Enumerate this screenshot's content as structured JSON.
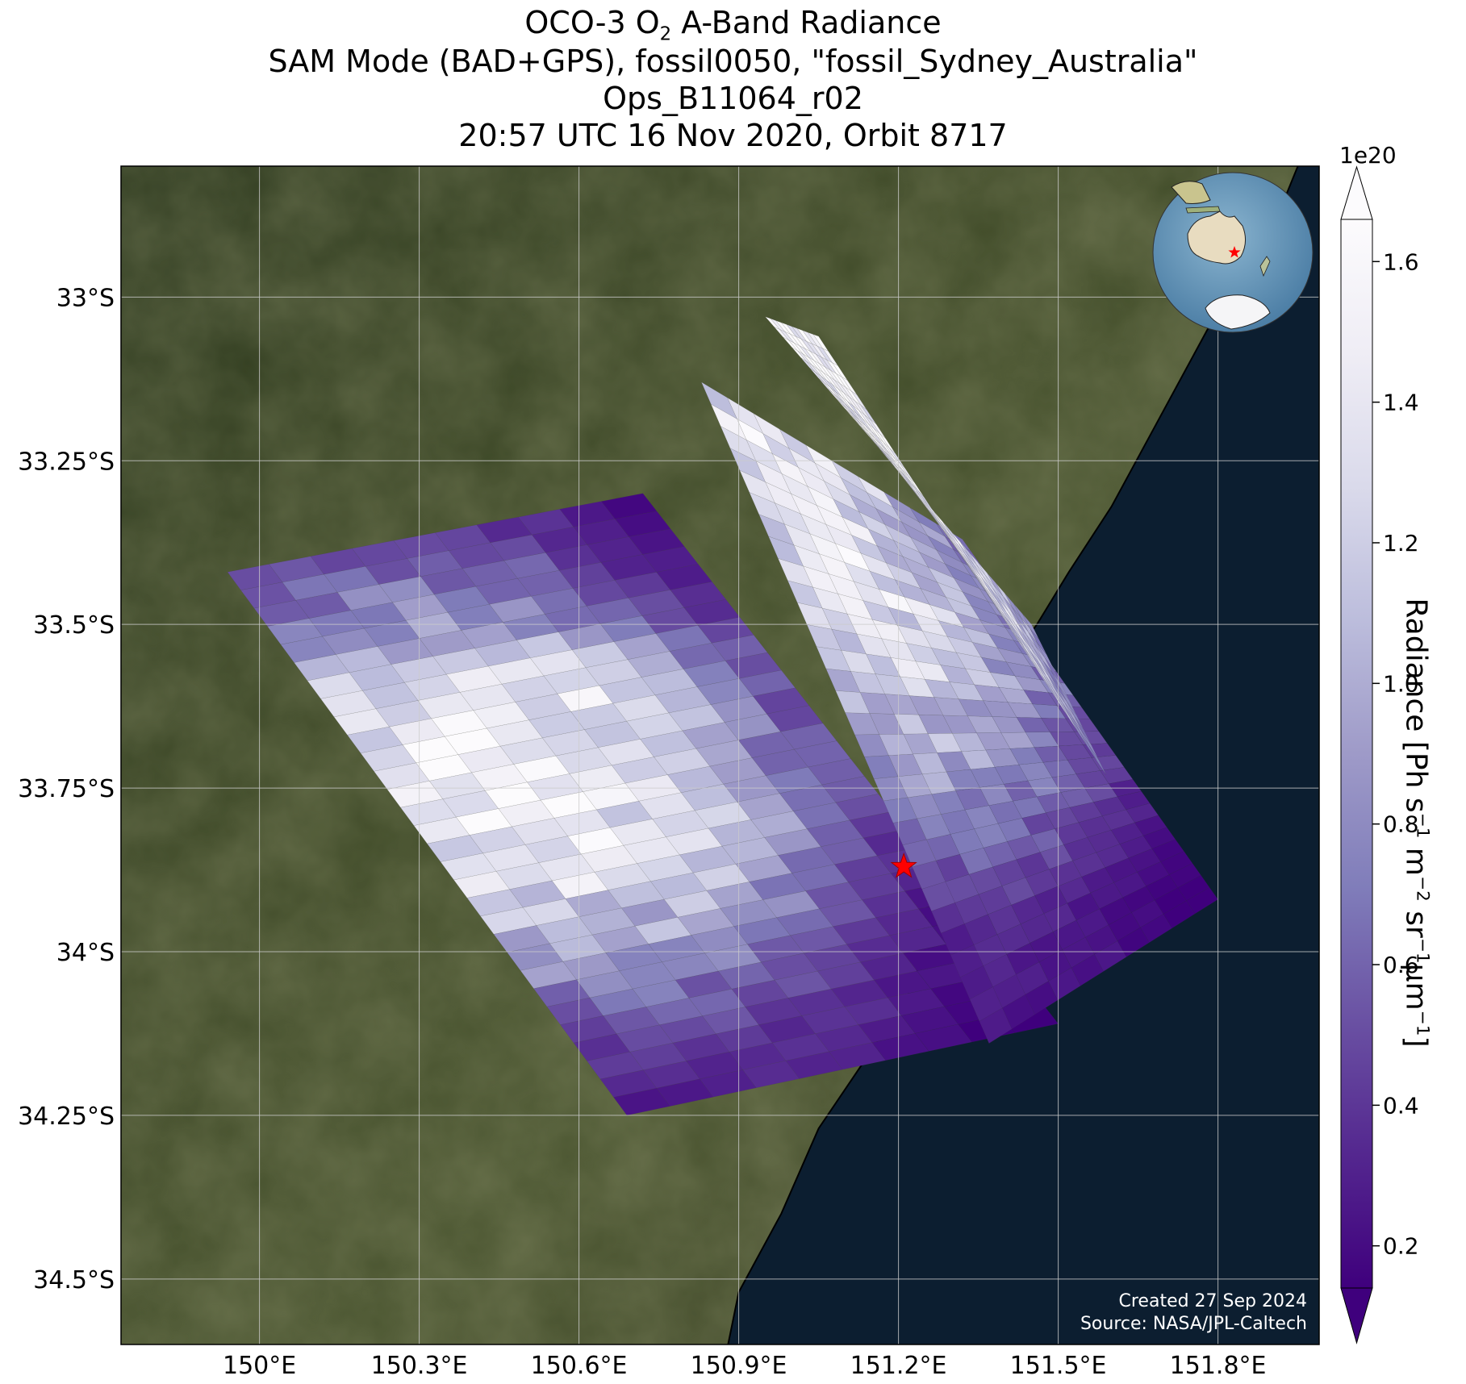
{
  "title": {
    "line1_prefix": "OCO-3 O",
    "line1_sub": "2",
    "line1_suffix": " A-Band Radiance",
    "line2": "SAM Mode (BAD+GPS), fossil0050, \"fossil_Sydney_Australia\"",
    "line3": "Ops_B11064_r02",
    "line4": "20:57 UTC 16 Nov 2020, Orbit 8717"
  },
  "axes": {
    "lon_ticks": [
      "150°E",
      "150.3°E",
      "150.6°E",
      "150.9°E",
      "151.2°E",
      "151.5°E",
      "151.8°E"
    ],
    "lon_values": [
      150.0,
      150.3,
      150.6,
      150.9,
      151.2,
      151.5,
      151.8
    ],
    "lat_ticks": [
      "33°S",
      "33.25°S",
      "33.5°S",
      "33.75°S",
      "34°S",
      "34.25°S",
      "34.5°S"
    ],
    "lat_values": [
      -33.0,
      -33.25,
      -33.5,
      -33.75,
      -34.0,
      -34.25,
      -34.5
    ],
    "lon_range": [
      149.74,
      151.99
    ],
    "lat_range": [
      -34.6,
      -32.8
    ],
    "grid": true
  },
  "colorbar": {
    "scale_label": "1e20",
    "ticks": [
      "0.2",
      "0.4",
      "0.6",
      "0.8",
      "1.0",
      "1.2",
      "1.4",
      "1.6"
    ],
    "tick_values": [
      0.2,
      0.4,
      0.6,
      0.8,
      1.0,
      1.2,
      1.4,
      1.6
    ],
    "range": [
      0.14,
      1.66
    ],
    "colormap": [
      "#3f007d",
      "#54278f",
      "#6a51a3",
      "#807dba",
      "#9e9ac8",
      "#bcbddc",
      "#dadaeb",
      "#efedf5",
      "#fcfbfd"
    ],
    "extend": "both"
  },
  "target": {
    "name": "fossil_Sydney_Australia",
    "lon": 151.21,
    "lat": -33.87,
    "marker_color": "#ff0000"
  },
  "inset_globe": {
    "marker_color": "#ff0000"
  },
  "credit": {
    "line1": "Created 27 Sep 2024",
    "line2": "Source: NASA/JPL-Caltech"
  },
  "colors": {
    "ocean": "#0c1e30",
    "land": "#3c4426",
    "grid": "#cccccc"
  },
  "chart_data": {
    "type": "heatmap",
    "title": "OCO-3 O2 A-Band Radiance",
    "xlabel": "",
    "ylabel": "",
    "xlim": [
      149.74,
      151.99
    ],
    "ylim": [
      -34.6,
      -32.8
    ],
    "value_unit": "Radiance [Ph s^-1 m^-2 sr^-1 μm^-1]",
    "value_scale": 1e+20,
    "swaths": [
      {
        "corners_lonlat": [
          [
            149.94,
            -33.42
          ],
          [
            150.72,
            -33.3
          ],
          [
            151.5,
            -34.11
          ],
          [
            150.69,
            -34.25
          ]
        ],
        "along_track_values": [
          0.45,
          0.75,
          1.35,
          1.5,
          1.25,
          0.9,
          0.45,
          0.25
        ],
        "cross_track_profile": [
          1.0,
          1.1,
          1.15,
          1.05,
          0.95,
          0.75,
          0.5,
          0.3
        ]
      },
      {
        "corners_lonlat": [
          [
            150.83,
            -33.13
          ],
          [
            151.32,
            -33.37
          ],
          [
            151.8,
            -33.92
          ],
          [
            151.37,
            -34.14
          ]
        ],
        "along_track_values": [
          1.35,
          1.25,
          1.3,
          1.15,
          0.9,
          0.6,
          0.3,
          0.22
        ],
        "cross_track_profile": [
          1.0,
          1.05,
          1.1,
          1.05,
          0.95,
          0.8,
          0.65,
          0.5
        ]
      },
      {
        "corners_lonlat": [
          [
            150.95,
            -33.03
          ],
          [
            151.05,
            -33.06
          ],
          [
            151.59,
            -33.73
          ],
          [
            151.45,
            -33.5
          ]
        ],
        "along_track_values": [
          1.6,
          1.55,
          1.5,
          1.45,
          1.35,
          1.2,
          0.7
        ],
        "cross_track_profile": [
          1.0,
          1.0,
          0.98,
          0.97,
          0.95
        ]
      }
    ]
  }
}
